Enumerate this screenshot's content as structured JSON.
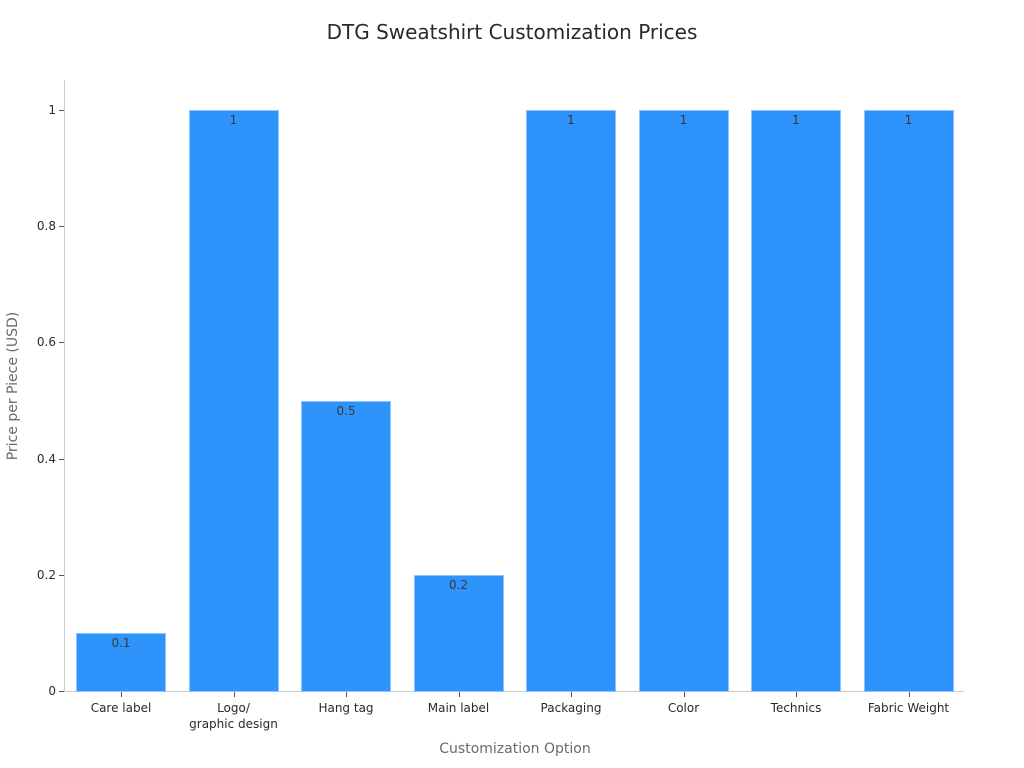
{
  "chart_data": {
    "type": "bar",
    "title": "DTG Sweatshirt Customization Prices",
    "xlabel": "Customization Option",
    "ylabel": "Price per Piece (USD)",
    "categories": [
      "Care label",
      "Logo/\ngraphic design",
      "Hang tag",
      "Main label",
      "Packaging",
      "Color",
      "Technics",
      "Fabric Weight"
    ],
    "values": [
      0.1,
      1,
      0.5,
      0.2,
      1,
      1,
      1,
      1
    ],
    "value_labels": [
      "0.1",
      "1",
      "0.5",
      "0.2",
      "1",
      "1",
      "1",
      "1"
    ],
    "yticks": [
      "0",
      "0.2",
      "0.4",
      "0.6",
      "0.8",
      "1"
    ],
    "ylim": [
      0,
      1.05
    ],
    "grid": false,
    "legend": null,
    "bar_color": "#2e93fa"
  }
}
